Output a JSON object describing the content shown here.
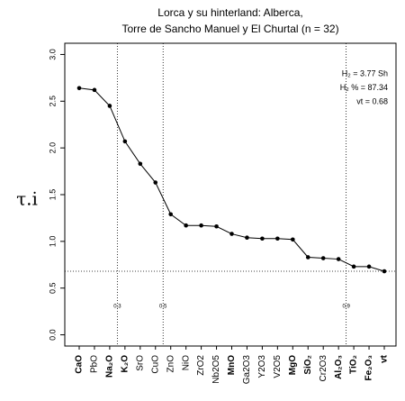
{
  "chart_data": {
    "type": "line",
    "title": "Lorca y su hinterland: Alberca,",
    "subtitle": "Torre de Sancho Manuel y El Churtal (n = 32)",
    "y_label": "τ.i",
    "categories": [
      "CaO",
      "PbO",
      "Na₂O",
      "K₂O",
      "SrO",
      "CuO",
      "ZnO",
      "NiO",
      "ZrO2",
      "Nb2O5",
      "MnO",
      "Ga2O3",
      "Y2O3",
      "V2O5",
      "MgO",
      "SiO₂",
      "Cr2O3",
      "Al₂O₃",
      "TiO₂",
      "Fe₂O₃",
      "vt"
    ],
    "bold_categories": [
      true,
      false,
      true,
      true,
      false,
      false,
      false,
      false,
      false,
      false,
      true,
      false,
      false,
      false,
      true,
      true,
      false,
      true,
      true,
      true,
      true
    ],
    "values": [
      2.64,
      2.62,
      2.45,
      2.07,
      1.83,
      1.63,
      1.29,
      1.17,
      1.17,
      1.16,
      1.08,
      1.04,
      1.03,
      1.03,
      1.02,
      0.83,
      0.82,
      0.81,
      0.73,
      0.73,
      0.68
    ],
    "color": "#000000",
    "ylim": [
      -0.12,
      3.12
    ],
    "yticks": [
      {
        "value": 0,
        "label": "0.0"
      },
      {
        "value": 0.5,
        "label": "0.5"
      },
      {
        "value": 1,
        "label": "1.0"
      },
      {
        "value": 1.5,
        "label": "1.5"
      },
      {
        "value": 2,
        "label": "2.0"
      },
      {
        "value": 2.5,
        "label": "2.5"
      },
      {
        "value": 3,
        "label": "3.0"
      }
    ],
    "hline": 0.68,
    "cutoffs": [
      {
        "x": 2.5,
        "label": "0.3"
      },
      {
        "x": 5.5,
        "label": "0.5"
      },
      {
        "x": 17.5,
        "label": "0.9"
      }
    ],
    "annotations": [
      "H₂ = 3.77 Sh",
      "H₂ % = 87.34",
      "vt = 0.68"
    ]
  }
}
